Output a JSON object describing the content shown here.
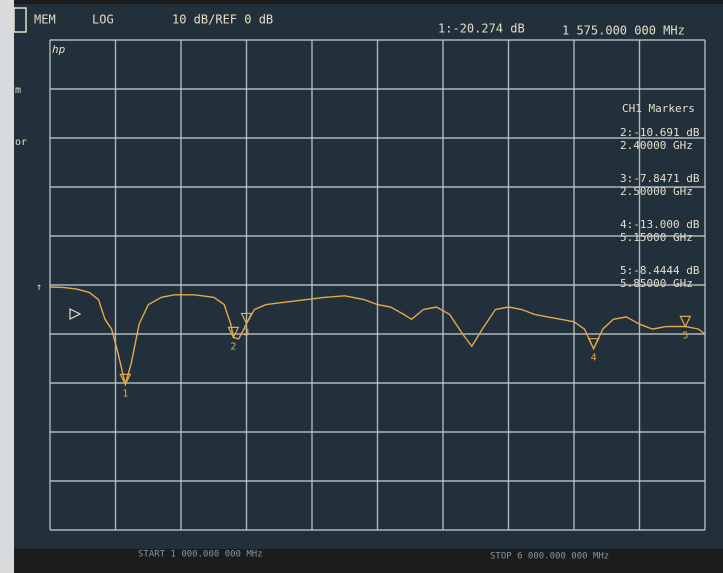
{
  "chart_data": {
    "type": "line",
    "annotations": {
      "mode": "MEM",
      "format": "LOG",
      "scale": "10 dB/REF 0 dB",
      "logo": "hp",
      "side_1": "m",
      "side_2": "or",
      "arrow": "↑",
      "start": "START 1 000.000 000 MHz",
      "stop": "STOP 6 000.000 000 MHz"
    },
    "active_marker": {
      "value_text": "1:-20.274 dB",
      "freq_text": "1 575.000 000 MHz"
    },
    "marker_table": {
      "title": "CH1 Markers",
      "rows": [
        [
          "2:-10.691 dB",
          "2.40000 GHz"
        ],
        [
          "3:-7.8471 dB",
          "2.50000 GHz"
        ],
        [
          "4:-13.000 dB",
          "5.15000 GHz"
        ],
        [
          "5:-8.4444 dB",
          "5.85000 GHz"
        ]
      ]
    },
    "x": [
      1000,
      1100,
      1200,
      1300,
      1370,
      1420,
      1470,
      1520,
      1575,
      1620,
      1680,
      1750,
      1850,
      1950,
      2100,
      2250,
      2330,
      2380,
      2400,
      2440,
      2480,
      2500,
      2560,
      2650,
      2800,
      2950,
      3100,
      3250,
      3400,
      3500,
      3600,
      3700,
      3760,
      3850,
      3950,
      4050,
      4150,
      4220,
      4300,
      4400,
      4500,
      4600,
      4700,
      4800,
      4900,
      5000,
      5080,
      5150,
      5220,
      5300,
      5400,
      5500,
      5600,
      5700,
      5850,
      5950,
      6000
    ],
    "values": [
      -0.4,
      -0.5,
      -0.8,
      -1.5,
      -3,
      -7,
      -9,
      -14,
      -20.274,
      -16,
      -8,
      -4,
      -2.5,
      -2,
      -2,
      -2.5,
      -4,
      -8,
      -10.691,
      -11,
      -9,
      -7.8471,
      -5,
      -4,
      -3.5,
      -3,
      -2.5,
      -2.2,
      -3,
      -4,
      -4.5,
      -6,
      -7,
      -5,
      -4.5,
      -6,
      -10,
      -12.5,
      -9,
      -5,
      -4.5,
      -5,
      -6,
      -6.5,
      -7,
      -7.5,
      -9,
      -13,
      -9,
      -7,
      -6.5,
      -8,
      -9,
      -8.5,
      -8.4444,
      -9,
      -10
    ],
    "color": "#e2a94c",
    "markers": [
      {
        "label": "1",
        "x": 1575,
        "value": -20.274
      },
      {
        "label": "2",
        "x": 2400,
        "value": -10.691
      },
      {
        "label": "3",
        "x": 2500,
        "value": -7.8471
      },
      {
        "label": "4",
        "x": 5150,
        "value": -13
      },
      {
        "label": "5",
        "x": 5850,
        "value": -8.4444
      }
    ],
    "xlim": [
      1000,
      6000
    ],
    "ylim": [
      -50,
      50
    ],
    "xticks": [
      1000,
      1500,
      2000,
      2500,
      3000,
      3500,
      4000,
      4500,
      5000,
      5500,
      6000
    ],
    "yticks": [
      -50,
      -40,
      -30,
      -20,
      -10,
      0,
      10,
      20,
      30,
      40,
      50
    ],
    "grid": true
  }
}
